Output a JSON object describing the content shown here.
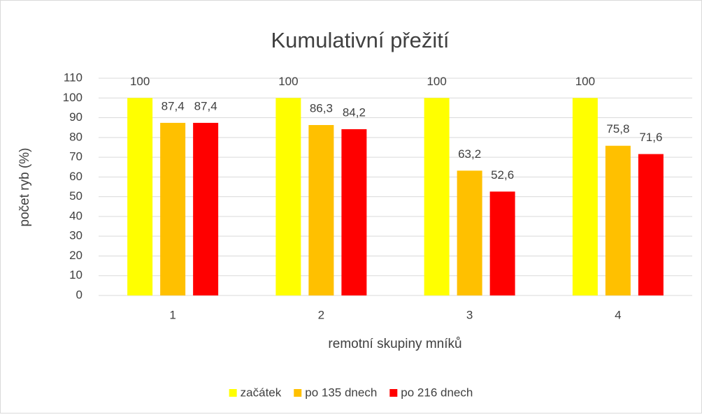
{
  "chart_data": {
    "type": "bar",
    "title": "Kumulativní přežití",
    "x_label": "remotní skupiny mníků",
    "y_label": "počet ryb (%)",
    "categories": [
      "1",
      "2",
      "3",
      "4"
    ],
    "series": [
      {
        "name": "začátek",
        "color": "#ffff00",
        "values": [
          100,
          100,
          100,
          100
        ],
        "value_labels": [
          "100",
          "100",
          "100",
          "100"
        ]
      },
      {
        "name": "po 135 dnech",
        "color": "#ffc000",
        "values": [
          87.4,
          86.3,
          63.2,
          75.8
        ],
        "value_labels": [
          "87,4",
          "86,3",
          "63,2",
          "75,8"
        ]
      },
      {
        "name": "po 216 dnech",
        "color": "#ff0000",
        "values": [
          87.4,
          84.2,
          52.6,
          71.6
        ],
        "value_labels": [
          "87,4",
          "84,2",
          "52,6",
          "71,6"
        ]
      }
    ],
    "ylim": [
      0,
      110
    ],
    "yticks": [
      0,
      10,
      20,
      30,
      40,
      50,
      60,
      70,
      80,
      90,
      100,
      110
    ],
    "grid": true,
    "legend": "bottom"
  }
}
